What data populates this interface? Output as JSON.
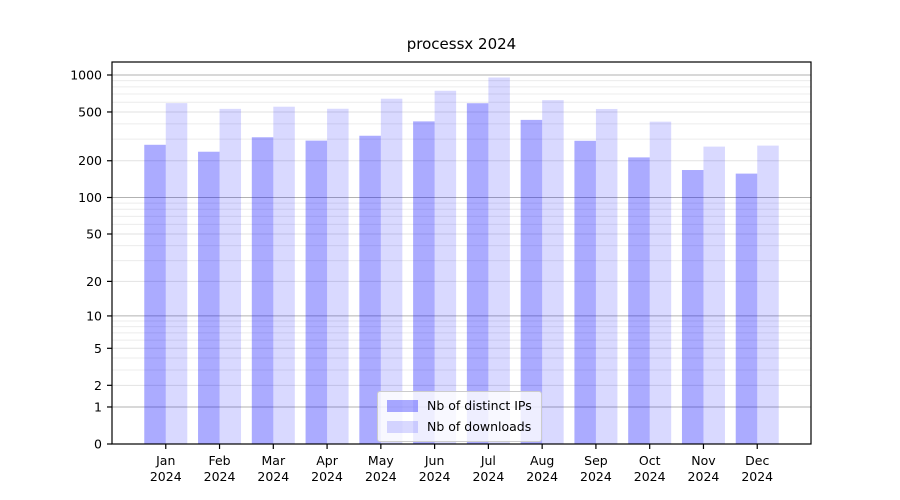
{
  "chart_data": {
    "type": "bar",
    "title": "processx 2024",
    "categories": [
      "Jan 2024",
      "Feb 2024",
      "Mar 2024",
      "Apr 2024",
      "May 2024",
      "Jun 2024",
      "Jul 2024",
      "Aug 2024",
      "Sep 2024",
      "Oct 2024",
      "Nov 2024",
      "Dec 2024"
    ],
    "series": [
      {
        "name": "Nb of distinct IPs",
        "color": "rgba(0,0,255,0.33)",
        "values": [
          270,
          237,
          311,
          292,
          320,
          419,
          589,
          431,
          291,
          213,
          168,
          157
        ]
      },
      {
        "name": "Nb of downloads",
        "color": "rgba(0,0,255,0.15)",
        "values": [
          590,
          530,
          552,
          531,
          641,
          744,
          954,
          624,
          529,
          417,
          261,
          266
        ]
      }
    ],
    "xlabel": "",
    "ylabel": "",
    "yscale": "log1p",
    "yticks": [
      0,
      1,
      2,
      5,
      10,
      20,
      50,
      100,
      200,
      500,
      1000
    ],
    "ylim": [
      0,
      1300
    ],
    "grid": true,
    "legend_position": "lower center",
    "colors": {
      "grid_major": "#b2b2b2",
      "grid_labeled": "#e2e2e2",
      "grid_minor": "#ececec",
      "axis": "#000000",
      "tick_text": "#000000"
    }
  }
}
